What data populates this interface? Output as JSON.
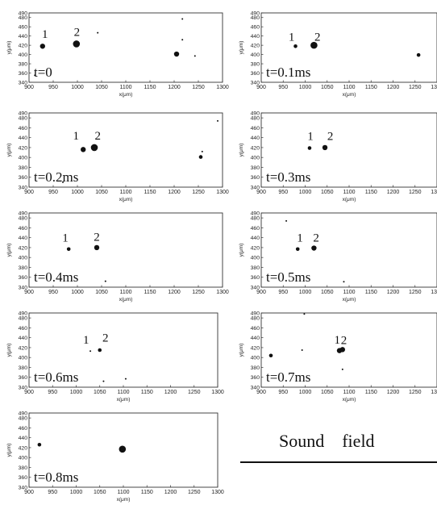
{
  "chart_data": [
    {
      "type": "scatter",
      "time_label": "t=0",
      "xlabel": "x(μm)",
      "ylabel": "y(μm)",
      "xlim": [
        900,
        1300
      ],
      "ylim": [
        340,
        490
      ],
      "xticks": [
        "900",
        "950",
        "1000",
        "1050",
        "1100",
        "1150",
        "1200",
        "1250",
        "1300"
      ],
      "yticks": [
        "340",
        "360",
        "380",
        "400",
        "420",
        "440",
        "460",
        "480",
        "490"
      ],
      "points": [
        {
          "x": 928,
          "y": 418,
          "size": "medium"
        },
        {
          "x": 998,
          "y": 423,
          "size": "large"
        },
        {
          "x": 1205,
          "y": 401,
          "size": "medium"
        },
        {
          "x": 1042,
          "y": 447,
          "size": "tiny"
        },
        {
          "x": 1217,
          "y": 477,
          "size": "tiny"
        },
        {
          "x": 1217,
          "y": 432,
          "size": "tiny"
        },
        {
          "x": 1243,
          "y": 397,
          "size": "tiny"
        },
        {
          "x": 912,
          "y": 355,
          "size": "tiny"
        }
      ],
      "annotations": [
        {
          "text": "1",
          "x": 933,
          "y": 436
        },
        {
          "text": "2",
          "x": 999,
          "y": 440
        }
      ]
    },
    {
      "type": "scatter",
      "time_label": "t=0.1ms",
      "xlabel": "x(μm)",
      "ylabel": "y(μm)",
      "xlim": [
        900,
        1300
      ],
      "ylim": [
        340,
        490
      ],
      "xticks": [
        "900",
        "950",
        "1000",
        "1050",
        "1100",
        "1150",
        "1200",
        "1250",
        "1300"
      ],
      "yticks": [
        "340",
        "360",
        "380",
        "400",
        "420",
        "440",
        "460",
        "480",
        "490"
      ],
      "points": [
        {
          "x": 978,
          "y": 418,
          "size": "small"
        },
        {
          "x": 1020,
          "y": 420,
          "size": "large"
        },
        {
          "x": 1258,
          "y": 399,
          "size": "small"
        }
      ],
      "annotations": [
        {
          "text": "1",
          "x": 969,
          "y": 430
        },
        {
          "text": "2",
          "x": 1028,
          "y": 430
        }
      ]
    },
    {
      "type": "scatter",
      "time_label": "t=0.2ms",
      "xlabel": "x(μm)",
      "ylabel": "y(μm)",
      "xlim": [
        900,
        1300
      ],
      "ylim": [
        340,
        490
      ],
      "xticks": [
        "900",
        "950",
        "1000",
        "1050",
        "1100",
        "1150",
        "1200",
        "1250",
        "1300"
      ],
      "yticks": [
        "340",
        "360",
        "380",
        "400",
        "420",
        "440",
        "460",
        "480",
        "490"
      ],
      "points": [
        {
          "x": 1012,
          "y": 416,
          "size": "medium"
        },
        {
          "x": 1035,
          "y": 420,
          "size": "large"
        },
        {
          "x": 1255,
          "y": 401,
          "size": "small"
        },
        {
          "x": 970,
          "y": 350,
          "size": "tiny"
        },
        {
          "x": 1258,
          "y": 412,
          "size": "tiny"
        },
        {
          "x": 1290,
          "y": 474,
          "size": "tiny"
        }
      ],
      "annotations": [
        {
          "text": "1",
          "x": 997,
          "y": 436
        },
        {
          "text": "2",
          "x": 1042,
          "y": 436
        }
      ]
    },
    {
      "type": "scatter",
      "time_label": "t=0.3ms",
      "xlabel": "x(μm)",
      "ylabel": "y(μm)",
      "xlim": [
        900,
        1300
      ],
      "ylim": [
        340,
        490
      ],
      "xticks": [
        "900",
        "950",
        "1000",
        "1050",
        "1100",
        "1150",
        "1200",
        "1250",
        "1300"
      ],
      "yticks": [
        "340",
        "360",
        "380",
        "400",
        "420",
        "440",
        "460",
        "480",
        "490"
      ],
      "points": [
        {
          "x": 1010,
          "y": 419,
          "size": "small"
        },
        {
          "x": 1045,
          "y": 420,
          "size": "medium"
        }
      ],
      "annotations": [
        {
          "text": "1",
          "x": 1012,
          "y": 435
        },
        {
          "text": "2",
          "x": 1057,
          "y": 435
        }
      ]
    },
    {
      "type": "scatter",
      "time_label": "t=0.4ms",
      "xlabel": "x(μm)",
      "ylabel": "y(μm)",
      "xlim": [
        900,
        1300
      ],
      "ylim": [
        340,
        490
      ],
      "xticks": [
        "900",
        "950",
        "1000",
        "1050",
        "1100",
        "1150",
        "1200",
        "1250",
        "1300"
      ],
      "yticks": [
        "340",
        "360",
        "380",
        "400",
        "420",
        "440",
        "460",
        "480",
        "490"
      ],
      "points": [
        {
          "x": 982,
          "y": 417,
          "size": "small"
        },
        {
          "x": 1040,
          "y": 420,
          "size": "medium"
        },
        {
          "x": 1058,
          "y": 352,
          "size": "tiny"
        }
      ],
      "annotations": [
        {
          "text": "1",
          "x": 975,
          "y": 432
        },
        {
          "text": "2",
          "x": 1040,
          "y": 434
        }
      ]
    },
    {
      "type": "scatter",
      "time_label": "t=0.5ms",
      "xlabel": "x(μm)",
      "ylabel": "y(μm)",
      "xlim": [
        900,
        1300
      ],
      "ylim": [
        340,
        490
      ],
      "xticks": [
        "900",
        "950",
        "1000",
        "1050",
        "1100",
        "1150",
        "1200",
        "1250",
        "1300"
      ],
      "yticks": [
        "340",
        "360",
        "380",
        "400",
        "420",
        "440",
        "460",
        "480",
        "490"
      ],
      "points": [
        {
          "x": 983,
          "y": 417,
          "size": "small"
        },
        {
          "x": 1020,
          "y": 419,
          "size": "medium"
        },
        {
          "x": 957,
          "y": 474,
          "size": "tiny"
        },
        {
          "x": 1088,
          "y": 351,
          "size": "tiny"
        }
      ],
      "annotations": [
        {
          "text": "1",
          "x": 988,
          "y": 432
        },
        {
          "text": "2",
          "x": 1025,
          "y": 432
        }
      ]
    },
    {
      "type": "scatter",
      "time_label": "t=0.6ms",
      "xlabel": "x(μm)",
      "ylabel": "y(μm)",
      "xlim": [
        900,
        1300
      ],
      "ylim": [
        340,
        490
      ],
      "xticks": [
        "900",
        "950",
        "1000",
        "1050",
        "1100",
        "1150",
        "1200",
        "1250",
        "1300"
      ],
      "yticks": [
        "340",
        "360",
        "380",
        "400",
        "420",
        "440",
        "460",
        "480",
        "490"
      ],
      "points": [
        {
          "x": 1030,
          "y": 413,
          "size": "tiny"
        },
        {
          "x": 1050,
          "y": 415,
          "size": "small"
        },
        {
          "x": 1058,
          "y": 352,
          "size": "tiny"
        },
        {
          "x": 1105,
          "y": 357,
          "size": "tiny"
        }
      ],
      "annotations": [
        {
          "text": "1",
          "x": 1021,
          "y": 428
        },
        {
          "text": "2",
          "x": 1062,
          "y": 432
        }
      ]
    },
    {
      "type": "scatter",
      "time_label": "t=0.7ms",
      "xlabel": "x(μm)",
      "ylabel": "y(μm)",
      "xlim": [
        900,
        1300
      ],
      "ylim": [
        340,
        490
      ],
      "xticks": [
        "900",
        "950",
        "1000",
        "1050",
        "1100",
        "1150",
        "1200",
        "1250",
        "1300"
      ],
      "yticks": [
        "340",
        "360",
        "380",
        "400",
        "420",
        "440",
        "460",
        "480",
        "490"
      ],
      "points": [
        {
          "x": 1078,
          "y": 414,
          "size": "medium"
        },
        {
          "x": 1085,
          "y": 416,
          "size": "medium"
        },
        {
          "x": 922,
          "y": 404,
          "size": "small"
        },
        {
          "x": 1085,
          "y": 376,
          "size": "tiny"
        },
        {
          "x": 998,
          "y": 488,
          "size": "tiny"
        },
        {
          "x": 993,
          "y": 415,
          "size": "tiny"
        }
      ],
      "annotations": [
        {
          "text": "1",
          "x": 1073,
          "y": 428
        },
        {
          "text": "2",
          "x": 1088,
          "y": 427
        }
      ]
    },
    {
      "type": "scatter",
      "time_label": "t=0.8ms",
      "xlabel": "x(μm)",
      "ylabel": "y(μm)",
      "xlim": [
        900,
        1300
      ],
      "ylim": [
        340,
        490
      ],
      "xticks": [
        "900",
        "950",
        "1000",
        "1050",
        "1100",
        "1150",
        "1200",
        "1250",
        "1300"
      ],
      "yticks": [
        "340",
        "360",
        "380",
        "400",
        "420",
        "440",
        "460",
        "480",
        "490"
      ],
      "points": [
        {
          "x": 922,
          "y": 426,
          "size": "small"
        },
        {
          "x": 1098,
          "y": 417,
          "size": "large"
        }
      ],
      "annotations": []
    }
  ],
  "sound_field_label": "Sound    field",
  "colors": {
    "ink": "#111111",
    "frame": "#333333",
    "background": "#ffffff"
  }
}
